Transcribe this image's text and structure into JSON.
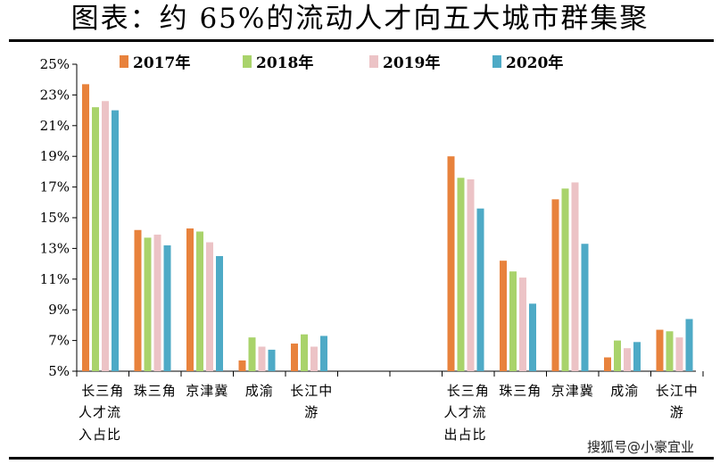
{
  "page_title": "图表：约 65%的流动人才向五大城市群集聚",
  "watermark": "搜狐号@小豪宜业",
  "chart_data": {
    "type": "bar",
    "title": "图表：约 65%的流动人才向五大城市群集聚",
    "xlabel": "",
    "ylabel": "",
    "ylim": [
      5,
      25
    ],
    "yticks": [
      "5%",
      "7%",
      "9%",
      "11%",
      "13%",
      "15%",
      "17%",
      "19%",
      "21%",
      "23%",
      "25%"
    ],
    "legend_position": "top",
    "groups": [
      {
        "label_lines": [
          "人才流",
          "入占比"
        ],
        "categories": [
          "长三角",
          "珠三角",
          "京津冀",
          "成渝",
          "长江中游"
        ],
        "series_values": [
          [
            23.7,
            14.2,
            14.3,
            5.7,
            6.8
          ],
          [
            22.2,
            13.7,
            14.1,
            7.2,
            7.4
          ],
          [
            22.6,
            13.9,
            13.4,
            6.6,
            6.6
          ],
          [
            22.0,
            13.2,
            12.5,
            6.4,
            7.3
          ]
        ]
      },
      {
        "label_lines": [
          "人才流",
          "出占比"
        ],
        "categories": [
          "长三角",
          "珠三角",
          "京津冀",
          "成渝",
          "长江中游"
        ],
        "series_values": [
          [
            19.0,
            12.2,
            16.2,
            5.9,
            7.7
          ],
          [
            17.6,
            11.5,
            16.9,
            7.0,
            7.6
          ],
          [
            17.5,
            11.1,
            17.3,
            6.5,
            7.2
          ],
          [
            15.6,
            9.4,
            13.3,
            6.9,
            8.4
          ]
        ]
      }
    ],
    "series": [
      {
        "name": "2017年",
        "color": "#e8823c"
      },
      {
        "name": "2018年",
        "color": "#a9d36b"
      },
      {
        "name": "2019年",
        "color": "#ecc3c6"
      },
      {
        "name": "2020年",
        "color": "#4eaac6"
      }
    ]
  }
}
